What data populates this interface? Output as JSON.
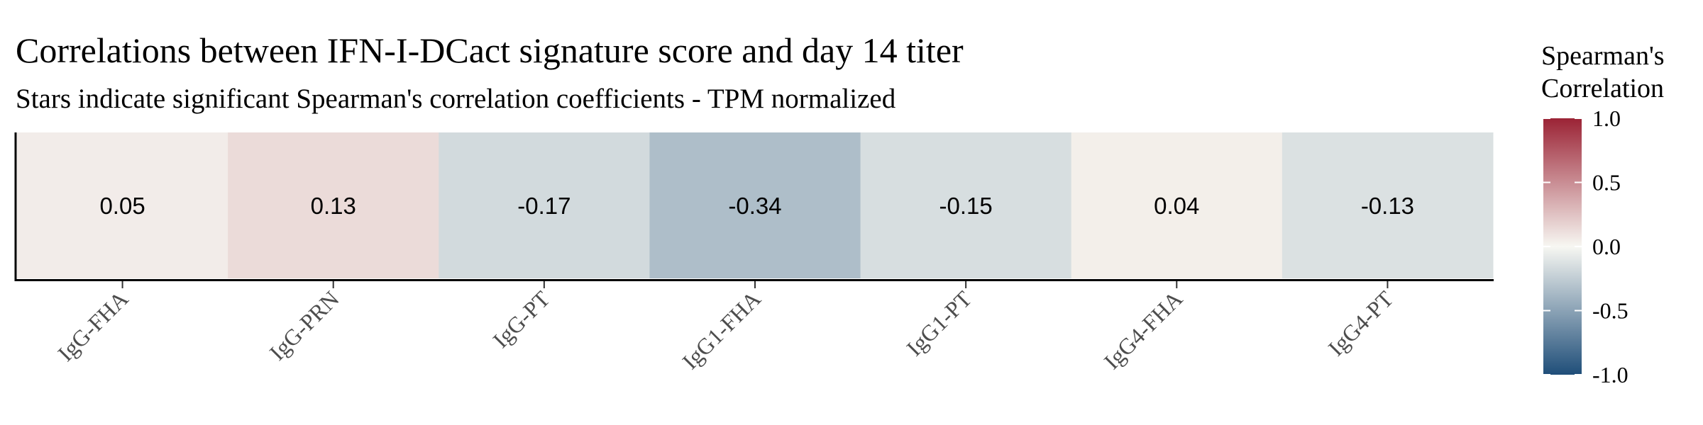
{
  "chart_data": {
    "type": "heatmap",
    "title": "Correlations between IFN-I-DCact signature score and day 14 titer",
    "subtitle": "Stars indicate significant Spearman's correlation coefficients - TPM normalized",
    "categories": [
      "IgG-FHA",
      "IgG-PRN",
      "IgG-PT",
      "IgG1-FHA",
      "IgG1-PT",
      "IgG4-FHA",
      "IgG4-PT"
    ],
    "values": [
      0.05,
      0.13,
      -0.17,
      -0.34,
      -0.15,
      0.04,
      -0.13
    ],
    "value_labels": [
      "0.05",
      "0.13",
      "-0.17",
      "-0.34",
      "-0.15",
      "0.04",
      "-0.13"
    ],
    "legend": {
      "title_lines": [
        "Spearman's",
        "Correlation"
      ],
      "range": [
        -1.0,
        1.0
      ],
      "ticks": [
        1.0,
        0.5,
        0.0,
        -0.5,
        -1.0
      ],
      "tick_labels": [
        "1.0",
        "0.5",
        "0.0",
        "-0.5",
        "-1.0"
      ],
      "placement": "right"
    },
    "colors": {
      "low": "#1f4e79",
      "mid": "#f7f7f2",
      "high": "#9b2335"
    },
    "grid": false
  }
}
